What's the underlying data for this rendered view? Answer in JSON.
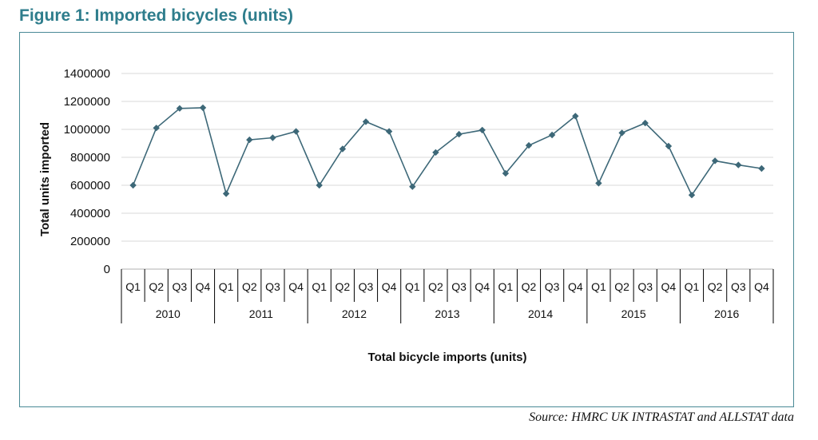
{
  "figure_title": "Figure 1: Imported bicycles (units)",
  "source": "Source: HMRC UK INTRASTAT and ALLSTAT data",
  "colors": {
    "title": "#2e7d8c",
    "line": "#3d6878",
    "frame": "#4a8a96",
    "grid": "#d9d9d9"
  },
  "chart_data": {
    "type": "line",
    "title": "",
    "xlabel": "Total bicycle imports (units)",
    "ylabel": "Total units imported",
    "ylim": [
      0,
      1400000
    ],
    "yticks": [
      "0",
      "200000",
      "400000",
      "600000",
      "800000",
      "1000000",
      "1200000",
      "1400000"
    ],
    "grid": true,
    "legend": "none",
    "years": [
      "2010",
      "2011",
      "2012",
      "2013",
      "2014",
      "2015",
      "2016"
    ],
    "quarters": [
      "Q1",
      "Q2",
      "Q3",
      "Q4"
    ],
    "series": [
      {
        "values": [
          600000,
          1010000,
          1150000,
          1155000,
          540000,
          925000,
          940000,
          985000,
          600000,
          860000,
          1055000,
          985000,
          590000,
          835000,
          965000,
          995000,
          685000,
          885000,
          960000,
          1095000,
          615000,
          975000,
          1045000,
          880000,
          530000,
          775000,
          745000,
          720000
        ]
      }
    ]
  }
}
